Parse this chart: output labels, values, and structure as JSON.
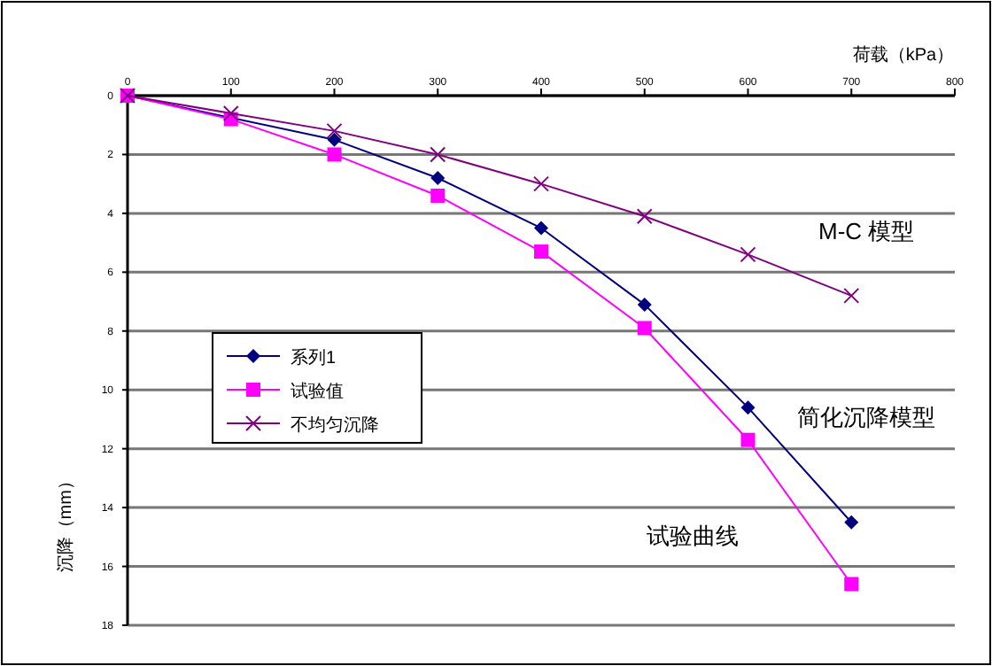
{
  "chart_data": {
    "type": "line",
    "xlabel": "荷载（kPa）",
    "ylabel": "沉降（mm）",
    "x": [
      0,
      100,
      200,
      300,
      400,
      500,
      600,
      700
    ],
    "xlim": [
      0,
      800
    ],
    "xticks": [
      0,
      100,
      200,
      300,
      400,
      500,
      600,
      700,
      800
    ],
    "ylim": [
      18,
      0
    ],
    "yticks": [
      0,
      2,
      4,
      6,
      8,
      10,
      12,
      14,
      16,
      18
    ],
    "grid": "y",
    "legend": "left",
    "series": [
      {
        "name": "系列1",
        "color": "#000080",
        "marker": "diamond",
        "values": [
          0,
          null,
          1.5,
          2.8,
          4.5,
          7.1,
          10.6,
          14.5
        ]
      },
      {
        "name": "试验值",
        "color": "#ff00ff",
        "marker": "square",
        "values": [
          0,
          0.8,
          2.0,
          3.4,
          5.3,
          7.9,
          11.7,
          16.6
        ]
      },
      {
        "name": "不均匀沉降",
        "color": "#800080",
        "marker": "cross",
        "values": [
          0,
          0.6,
          1.2,
          2.0,
          3.0,
          4.1,
          5.4,
          6.8
        ]
      }
    ],
    "annotations": [
      "M-C  模型",
      "简化沉降模型",
      "试验曲线"
    ]
  }
}
